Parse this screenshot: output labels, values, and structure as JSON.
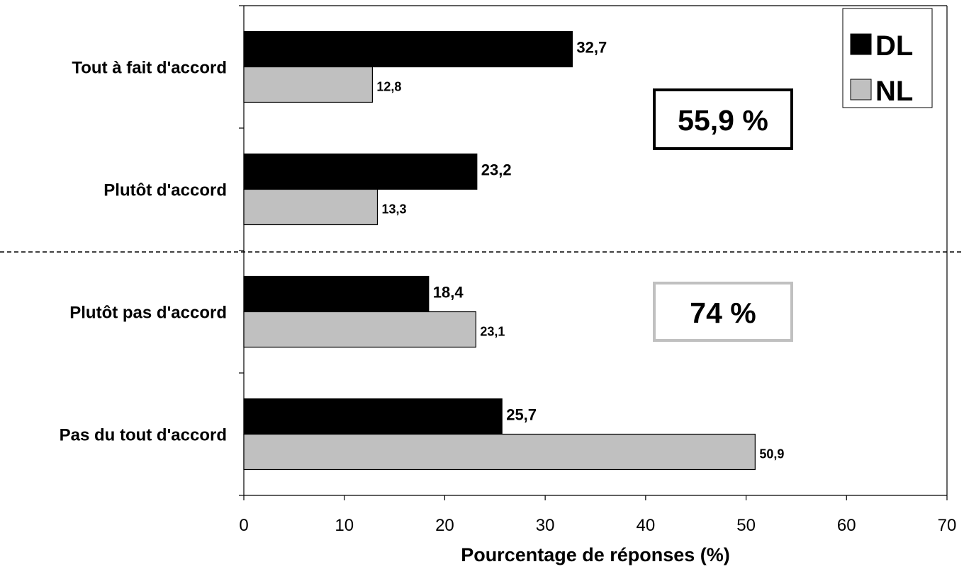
{
  "chart_data": {
    "type": "bar",
    "orientation": "horizontal",
    "categories": [
      "Tout à fait d'accord",
      "Plutôt d'accord",
      "Plutôt pas d'accord",
      "Pas du tout d'accord"
    ],
    "series": [
      {
        "name": "DL",
        "values": [
          32.7,
          23.2,
          18.4,
          25.7
        ],
        "value_labels": [
          "32,7",
          "23,2",
          "18,4",
          "25,7"
        ],
        "color": "#000000"
      },
      {
        "name": "NL",
        "values": [
          12.8,
          13.3,
          23.1,
          50.9
        ],
        "value_labels": [
          "12,8",
          "13,3",
          "23,1",
          "50,9"
        ],
        "color": "#c0c0c0"
      }
    ],
    "xlabel": "Pourcentage de réponses (%)",
    "ylabel": "",
    "xlim": [
      0,
      70
    ],
    "xticks": [
      0,
      10,
      20,
      30,
      40,
      50,
      60,
      70
    ],
    "grid": false,
    "legend_position": "top-right",
    "separator": "dashed line between 'Plutôt d'accord' and 'Plutôt pas d'accord'",
    "annotations": [
      {
        "text": "55,9 %",
        "border_color": "#000000"
      },
      {
        "text": "74 %",
        "border_color": "#c0c0c0"
      }
    ]
  }
}
